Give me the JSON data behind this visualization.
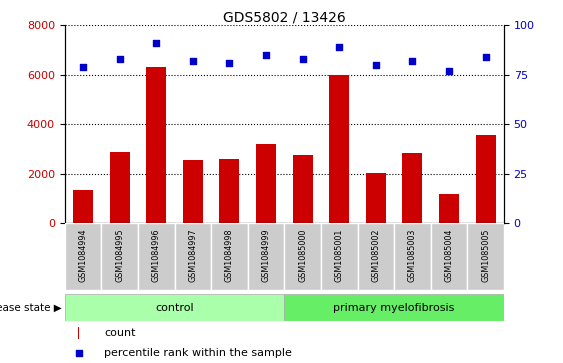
{
  "title": "GDS5802 / 13426",
  "samples": [
    "GSM1084994",
    "GSM1084995",
    "GSM1084996",
    "GSM1084997",
    "GSM1084998",
    "GSM1084999",
    "GSM1085000",
    "GSM1085001",
    "GSM1085002",
    "GSM1085003",
    "GSM1085004",
    "GSM1085005"
  ],
  "counts": [
    1350,
    2900,
    6300,
    2550,
    2600,
    3200,
    2750,
    6000,
    2050,
    2850,
    1200,
    3550
  ],
  "percentiles": [
    79,
    83,
    91,
    82,
    81,
    85,
    83,
    89,
    80,
    82,
    77,
    84
  ],
  "n_control": 6,
  "n_myelofibrosis": 6,
  "bar_color": "#cc0000",
  "dot_color": "#0000cc",
  "control_bg": "#aaffaa",
  "myelofibrosis_bg": "#66ee66",
  "tick_bg": "#cccccc",
  "ylim_left": [
    0,
    8000
  ],
  "ylim_right": [
    0,
    100
  ],
  "yticks_left": [
    0,
    2000,
    4000,
    6000,
    8000
  ],
  "yticks_right": [
    0,
    25,
    50,
    75,
    100
  ],
  "legend_count_label": "count",
  "legend_pct_label": "percentile rank within the sample",
  "disease_state_label": "disease state",
  "control_label": "control",
  "myelofibrosis_label": "primary myelofibrosis"
}
